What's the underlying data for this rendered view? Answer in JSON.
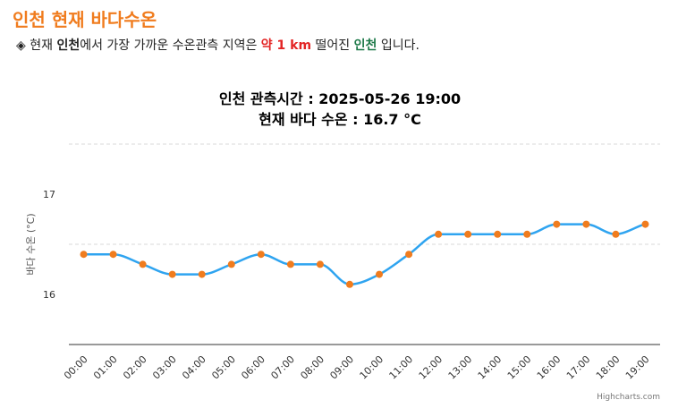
{
  "page": {
    "title": "인천 현재 바다수온",
    "info": {
      "bullet": "◈",
      "prefix": "현재",
      "location": "인천",
      "middle": "에서 가장 가까운 수온관측 지역은",
      "distance": "약 1 km",
      "middle2": "떨어진",
      "station": "인천",
      "suffix": "입니다."
    },
    "credits": "Highcharts.com"
  },
  "colors": {
    "title": "#f07c1e",
    "line": "#2fa4f0",
    "marker": "#f07c1e",
    "distance": "#e32424",
    "station": "#1f7a4a"
  },
  "chart_data": {
    "type": "line",
    "title_line1": "인천 관측시간 : 2025-05-26 19:00",
    "title_line2": "현재 바다 수온 : 16.7 °C",
    "ylabel": "바다 수온 (°C)",
    "xlabel": "",
    "categories": [
      "00:00",
      "01:00",
      "02:00",
      "03:00",
      "04:00",
      "05:00",
      "06:00",
      "07:00",
      "08:00",
      "09:00",
      "10:00",
      "11:00",
      "12:00",
      "13:00",
      "14:00",
      "15:00",
      "16:00",
      "17:00",
      "18:00",
      "19:00"
    ],
    "series": [
      {
        "name": "바다 수온",
        "values": [
          16.4,
          16.4,
          16.3,
          16.2,
          16.2,
          16.3,
          16.4,
          16.3,
          16.3,
          16.1,
          16.2,
          16.4,
          16.6,
          16.6,
          16.6,
          16.6,
          16.7,
          16.7,
          16.6,
          16.7
        ]
      }
    ],
    "ylim": [
      15.5,
      17.5
    ],
    "yticks": [
      16,
      17
    ],
    "ytick_labels": [
      "16",
      "17"
    ],
    "gridlines": [
      15.5,
      16.5,
      17.5
    ],
    "grid": true,
    "legend": "none"
  }
}
